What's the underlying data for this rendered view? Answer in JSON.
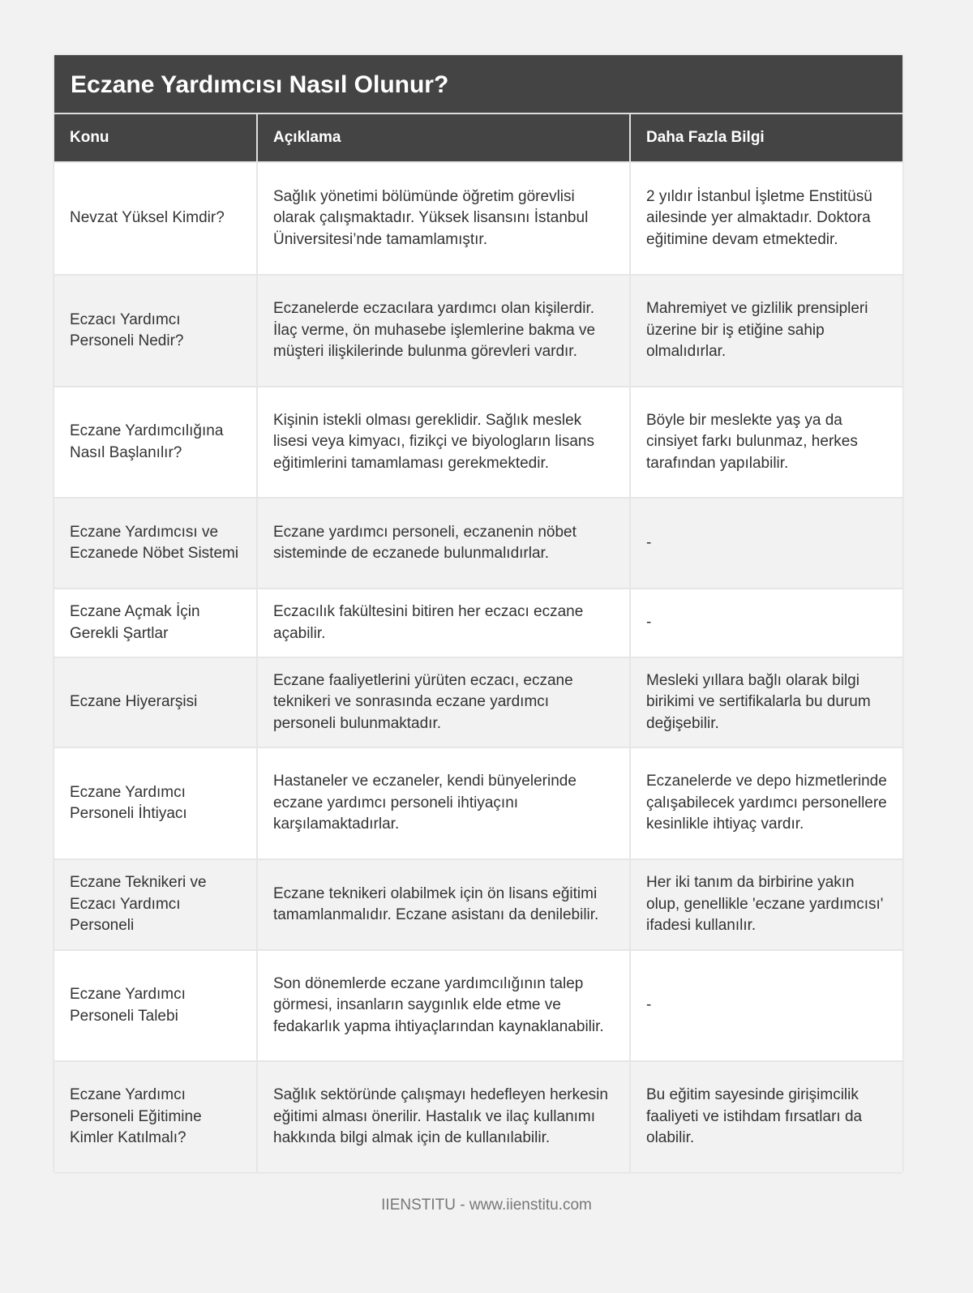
{
  "title": "Eczane Yardımcısı Nasıl Olunur?",
  "columns": [
    "Konu",
    "Açıklama",
    "Daha Fazla Bilgi"
  ],
  "rows": [
    {
      "topic": "Nevzat Yüksel Kimdir?",
      "description": "Sağlık yönetimi bölümünde öğretim görevlisi olarak çalışmaktadır. Yüksek lisansını İstanbul Üniversitesi’nde tamamlamıştır.",
      "more": "2 yıldır İstanbul İşletme Enstitüsü ailesinde yer almaktadır. Doktora eğitimine devam etmektedir."
    },
    {
      "topic": "Eczacı Yardımcı Personeli Nedir?",
      "description": "Eczanelerde eczacılara yardımcı olan kişilerdir. İlaç verme, ön muhasebe işlemlerine bakma ve müşteri ilişkilerinde bulunma görevleri vardır.",
      "more": "Mahremiyet ve gizlilik prensipleri üzerine bir iş etiğine sahip olmalıdırlar."
    },
    {
      "topic": "Eczane Yardımcılığına Nasıl Başlanılır?",
      "description": "Kişinin istekli olması gereklidir. Sağlık meslek lisesi veya kimyacı, fizikçi ve biyologların lisans eğitimlerini tamamlaması gerekmektedir.",
      "more": "Böyle bir meslekte yaş ya da cinsiyet farkı bulunmaz, herkes tarafından yapılabilir."
    },
    {
      "topic": "Eczane Yardımcısı ve Eczanede Nöbet Sistemi",
      "description": "Eczane yardımcı personeli, eczanenin nöbet sisteminde de eczanede bulunmalıdırlar.",
      "more": "-"
    },
    {
      "topic": "Eczane Açmak İçin Gerekli Şartlar",
      "description": "Eczacılık fakültesini bitiren her eczacı eczane açabilir.",
      "more": "-"
    },
    {
      "topic": "Eczane Hiyerarşisi",
      "description": "Eczane faaliyetlerini yürüten eczacı, eczane teknikeri ve sonrasında eczane yardımcı personeli bulunmaktadır.",
      "more": "Mesleki yıllara bağlı olarak bilgi birikimi ve sertifikalarla bu durum değişebilir."
    },
    {
      "topic": "Eczane Yardımcı Personeli İhtiyacı",
      "description": "Hastaneler ve eczaneler, kendi bünyelerinde eczane yardımcı personeli ihtiyaçını karşılamaktadırlar.",
      "more": "Eczanelerde ve depo hizmetlerinde çalışabilecek yardımcı personellere kesinlikle ihtiyaç vardır."
    },
    {
      "topic": "Eczane Teknikeri ve Eczacı Yardımcı Personeli",
      "description": "Eczane teknikeri olabilmek için ön lisans eğitimi tamamlanmalıdır. Eczane asistanı da denilebilir.",
      "more": "Her iki tanım da birbirine yakın olup, genellikle 'eczane yardımcısı' ifadesi kullanılır."
    },
    {
      "topic": "Eczane Yardımcı Personeli Talebi",
      "description": "Son dönemlerde eczane yardımcılığının talep görmesi, insanların saygınlık elde etme ve fedakarlık yapma ihtiyaçlarından kaynaklanabilir.",
      "more": "-"
    },
    {
      "topic": "Eczane Yardımcı Personeli Eğitimine Kimler Katılmalı?",
      "description": "Sağlık sektöründe çalışmayı hedefleyen herkesin eğitimi alması önerilir. Hastalık ve ilaç kullanımı hakkında bilgi almak için de kullanılabilir.",
      "more": "Bu eğitim sayesinde girişimcilik faaliyeti ve istihdam fırsatları da olabilir."
    }
  ],
  "footer": "IIENSTITU - www.iienstitu.com"
}
